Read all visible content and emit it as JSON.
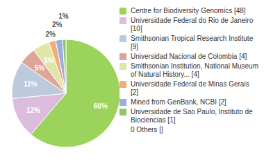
{
  "chart_data": {
    "type": "pie",
    "categories": [
      "Centre for Biodiversity Genomics [48]",
      "Universidade Federal do Rio de Janeiro [10]",
      "Smithsonian Tropical Research Institute [9]",
      "Universidad Nacional de Colombia [4]",
      "Smithsonian Institution, National Museum of Natural History... [4]",
      "Universidade Federal de Minas Gerais [2]",
      "Mined from GenBank, NCBI [2]",
      "Universidade de Sao Paulo, Instituto de Biociencias [1]",
      "0 Others []"
    ],
    "values": [
      60,
      12,
      11,
      5,
      5,
      2,
      2,
      1,
      0
    ],
    "value_labels": [
      "60%",
      "12%",
      "11%",
      "5%",
      "5%",
      "2%",
      "2%",
      "1%",
      null
    ],
    "colors": [
      "#9bd35c",
      "#dcbcdc",
      "#bccadc",
      "#dca597",
      "#dfe6a8",
      "#f0ae78",
      "#9aaee0",
      "#8ec76a",
      "#ffffff"
    ],
    "data_labels": true,
    "legend": "right"
  }
}
